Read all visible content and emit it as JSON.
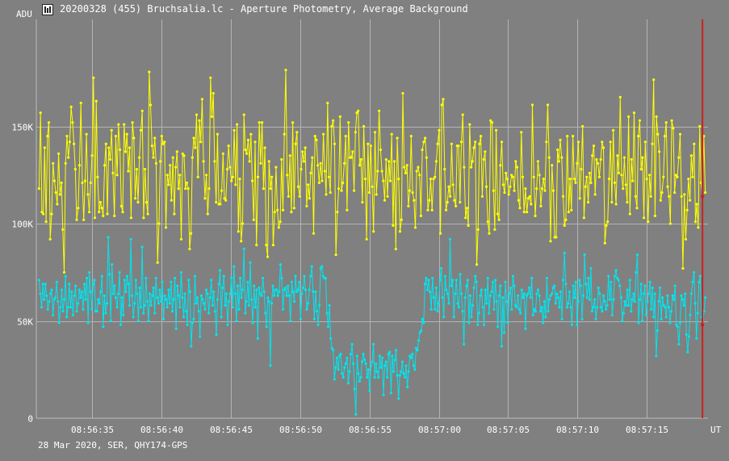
{
  "window": {
    "title": "20200328 (455) Bruchsalia.lc - Aperture Photometry, Average Background",
    "icon": "lightcurve-app-icon"
  },
  "footer": {
    "text": "28 Mar 2020, SER, QHY174-GPS"
  },
  "chart_data": {
    "type": "line",
    "title": "20200328 (455) Bruchsalia.lc - Aperture Photometry, Average Background",
    "ylabel": "ADU",
    "xlabel": "UT",
    "ylim": [
      0,
      205000
    ],
    "xlim": [
      "08:56:31.0",
      "08:57:19.4"
    ],
    "y_ticks": [
      0,
      50000,
      100000,
      150000
    ],
    "y_tick_labels": [
      "0",
      "50K",
      "100K",
      "150K"
    ],
    "x_ticks": [
      "08:56:35",
      "08:56:40",
      "08:56:45",
      "08:56:50",
      "08:56:55",
      "08:57:00",
      "08:57:05",
      "08:57:10",
      "08:57:15"
    ],
    "x_tick_labels": [
      "08:56:35",
      "08:56:40",
      "08:56:45",
      "08:56:50",
      "08:56:55",
      "08:57:00",
      "08:57:05",
      "08:57:10",
      "08:57:15"
    ],
    "grid": true,
    "cursor": {
      "x": "08:57:19.0",
      "color": "#cc2020"
    },
    "background": "#808080",
    "series": [
      {
        "color": "#ffff00",
        "x_start": "08:56:31.2",
        "x_end": "08:57:19.2",
        "values": [
          118000,
          157000,
          106000,
          105000,
          139000,
          101000,
          145000,
          152000,
          92000,
          105000,
          131000,
          122000,
          116000,
          110000,
          136000,
          115000,
          121000,
          97000,
          75000,
          131000,
          145000,
          134000,
          142000,
          160000,
          152000,
          141000,
          128000,
          102000,
          108000,
          130000,
          162000,
          121000,
          102000,
          122000,
          146000,
          115000,
          106000,
          121000,
          135000,
          175000,
          103000,
          163000,
          124000,
          106000,
          111000,
          108000,
          104000,
          130000,
          141000,
          105000,
          139000,
          133000,
          148000,
          126000,
          104000,
          145000,
          125000,
          151000,
          138000,
          109000,
          106000,
          151000,
          137000,
          146000,
          127000,
          139000,
          103000,
          152000,
          144000,
          113000,
          128000,
          111000,
          134000,
          148000,
          158000,
          103000,
          128000,
          111000,
          105000,
          178000,
          161000,
          140000,
          134000,
          144000,
          131000,
          80000,
          100000,
          132000,
          145000,
          141000,
          142000,
          98000,
          125000,
          120000,
          130000,
          112000,
          134000,
          105000,
          129000,
          137000,
          118000,
          125000,
          92000,
          136000,
          135000,
          118000,
          121000,
          118000,
          87000,
          95000,
          134000,
          144000,
          139000,
          156000,
          124000,
          153000,
          142000,
          164000,
          132000,
          113000,
          125000,
          105000,
          118000,
          175000,
          155000,
          167000,
          132000,
          111000,
          146000,
          110000,
          110000,
          117000,
          136000,
          113000,
          112000,
          128000,
          140000,
          129000,
          122000,
          124000,
          148000,
          120000,
          151000,
          96000,
          123000,
          91000,
          100000,
          156000,
          138000,
          136000,
          143000,
          132000,
          146000,
          122000,
          102000,
          142000,
          89000,
          124000,
          152000,
          131000,
          152000,
          118000,
          139000,
          89000,
          83000,
          132000,
          118000,
          124000,
          89000,
          106000,
          129000,
          107000,
          98000,
          101000,
          133000,
          107000,
          146000,
          179000,
          125000,
          114000,
          135000,
          106000,
          152000,
          108000,
          141000,
          147000,
          119000,
          114000,
          128000,
          137000,
          132000,
          139000,
          109000,
          120000,
          113000,
          126000,
          134000,
          95000,
          145000,
          143000,
          130000,
          121000,
          131000,
          122000,
          146000,
          127000,
          115000,
          162000,
          124000,
          116000,
          150000,
          153000,
          141000,
          84000,
          106000,
          118000,
          155000,
          117000,
          121000,
          131000,
          145000,
          107000,
          152000,
          134000,
          134000,
          137000,
          117000,
          147000,
          157000,
          158000,
          130000,
          133000,
          111000,
          150000,
          123000,
          92000,
          141000,
          116000,
          140000,
          119000,
          96000,
          147000,
          115000,
          127000,
          158000,
          138000,
          127000,
          122000,
          112000,
          133000,
          114000,
          132000,
          122000,
          146000,
          99000,
          132000,
          87000,
          144000,
          123000,
          96000,
          102000,
          167000,
          129000,
          126000,
          130000,
          109000,
          117000,
          145000,
          116000,
          112000,
          98000,
          127000,
          129000,
          125000,
          104000,
          138000,
          142000,
          144000,
          134000,
          107000,
          112000,
          123000,
          107000,
          123000,
          124000,
          132000,
          141000,
          148000,
          95000,
          161000,
          164000,
          128000,
          107000,
          111000,
          119000,
          114000,
          141000,
          120000,
          112000,
          109000,
          140000,
          140000,
          111000,
          142000,
          156000,
          129000,
          103000,
          108000,
          99000,
          151000,
          129000,
          132000,
          139000,
          142000,
          79000,
          97000,
          141000,
          145000,
          114000,
          133000,
          137000,
          119000,
          101000,
          95000,
          153000,
          152000,
          117000,
          97000,
          148000,
          105000,
          102000,
          130000,
          142000,
          120000,
          116000,
          126000,
          123000,
          115000,
          119000,
          125000,
          124000,
          117000,
          132000,
          129000,
          112000,
          108000,
          147000,
          124000,
          106000,
          118000,
          106000,
          113000,
          114000,
          110000,
          161000,
          124000,
          104000,
          118000,
          132000,
          125000,
          109000,
          118000,
          123000,
          117000,
          142000,
          161000,
          134000,
          91000,
          130000,
          117000,
          93000,
          93000,
          138000,
          132000,
          143000,
          134000,
          114000,
          99000,
          102000,
          145000,
          106000,
          123000,
          107000,
          145000,
          123000,
          121000,
          131000,
          142000,
          113000,
          128000,
          150000,
          103000,
          119000,
          124000,
          111000,
          126000,
          121000,
          135000,
          140000,
          115000,
          133000,
          131000,
          124000,
          133000,
          142000,
          139000,
          90000,
          99000,
          101000,
          123000,
          142000,
          111000,
          148000,
          121000,
          110000,
          135000,
          126000,
          165000,
          125000,
          118000,
          134000,
          120000,
          111000,
          155000,
          105000,
          133000,
          122000,
          157000,
          114000,
          108000,
          145000,
          153000,
          128000,
          134000,
          103000,
          142000,
          123000,
          101000,
          125000,
          114000,
          141000,
          174000,
          104000,
          155000,
          146000,
          137000,
          112000,
          116000,
          124000,
          145000,
          152000,
          119000,
          114000,
          100000,
          153000,
          149000,
          116000,
          125000,
          124000,
          134000,
          146000,
          114000,
          77000,
          115000,
          92000,
          107000,
          123000,
          112000,
          135000,
          124000,
          141000,
          101000,
          110000,
          98000,
          150000,
          121000,
          114000,
          145000,
          116000
        ]
      },
      {
        "color": "#00e5ee",
        "x_start": "08:56:31.2",
        "x_end": "08:57:19.2",
        "values": [
          71000,
          64000,
          57000,
          69000,
          61000,
          69000,
          63000,
          56000,
          60000,
          64000,
          66000,
          53000,
          61000,
          62000,
          70000,
          60000,
          49000,
          57000,
          66000,
          55000,
          61000,
          73000,
          52000,
          57000,
          69000,
          57000,
          65000,
          53000,
          63000,
          68000,
          55000,
          59000,
          66000,
          62000,
          65000,
          56000,
          69000,
          61000,
          72000,
          49000,
          75000,
          65000,
          56000,
          69000,
          71000,
          55000,
          55000,
          61000,
          59000,
          65000,
          73000,
          47000,
          63000,
          54000,
          59000,
          93000,
          74000,
          50000,
          79000,
          64000,
          68000,
          62000,
          57000,
          64000,
          75000,
          48000,
          62000,
          53000,
          71000,
          65000,
          73000,
          69000,
          58000,
          92000,
          63000,
          52000,
          59000,
          71000,
          64000,
          50000,
          67000,
          57000,
          88000,
          54000,
          58000,
          72000,
          60000,
          50000,
          64000,
          58000,
          63000,
          67000,
          54000,
          72000,
          62000,
          59000,
          66000,
          60000,
          70000,
          51000,
          63000,
          61000,
          57000,
          66000,
          59000,
          70000,
          55000,
          61000,
          72000,
          46000,
          68000,
          63000,
          57000,
          75000,
          62000,
          52000,
          64000,
          55000,
          48000,
          71000,
          65000,
          37000,
          49000,
          51000,
          73000,
          59000,
          62000,
          55000,
          42000,
          63000,
          61000,
          59000,
          56000,
          66000,
          64000,
          54000,
          62000,
          71000,
          58000,
          65000,
          55000,
          43000,
          61000,
          69000,
          76000,
          52000,
          67000,
          73000,
          58000,
          64000,
          48000,
          60000,
          64000,
          72000,
          57000,
          78000,
          64000,
          50000,
          68000,
          56000,
          72000,
          62000,
          66000,
          87000,
          54000,
          60000,
          70000,
          58000,
          80000,
          61000,
          49000,
          68000,
          57000,
          66000,
          41000,
          67000,
          64000,
          63000,
          72000,
          65000,
          54000,
          47000,
          62000,
          60000,
          27000,
          59000,
          68000,
          63000,
          66000,
          66000,
          63000,
          65000,
          79000,
          72000,
          56000,
          66000,
          67000,
          63000,
          68000,
          63000,
          50000,
          70000,
          65000,
          60000,
          73000,
          65000,
          66000,
          70000,
          51000,
          64000,
          67000,
          73000,
          66000,
          56000,
          59000,
          66000,
          73000,
          78000,
          65000,
          51000,
          65000,
          55000,
          48000,
          58000,
          77000,
          78000,
          73000,
          72000,
          72000,
          54000,
          47000,
          58000,
          41000,
          36000,
          35000,
          20000,
          26000,
          31000,
          25000,
          32000,
          33000,
          23000,
          21000,
          26000,
          28000,
          31000,
          18000,
          24000,
          33000,
          38000,
          28000,
          15000,
          2000,
          32000,
          23000,
          19000,
          21000,
          29000,
          33000,
          30000,
          28000,
          21000,
          25000,
          14000,
          27000,
          29000,
          38000,
          21000,
          28000,
          24000,
          21000,
          32000,
          26000,
          31000,
          12000,
          27000,
          29000,
          21000,
          33000,
          34000,
          13000,
          32000,
          24000,
          30000,
          35000,
          22000,
          10000,
          22000,
          24000,
          29000,
          23000,
          21000,
          27000,
          16000,
          24000,
          32000,
          31000,
          33000,
          27000,
          25000,
          36000,
          35000,
          40000,
          44000,
          45000,
          51000,
          49000,
          69000,
          72000,
          66000,
          71000,
          65000,
          56000,
          72000,
          62000,
          56000,
          67000,
          55000,
          59000,
          71000,
          77000,
          62000,
          52000,
          73000,
          66000,
          64000,
          59000,
          92000,
          68000,
          71000,
          52000,
          64000,
          71000,
          59000,
          57000,
          74000,
          64000,
          55000,
          38000,
          62000,
          68000,
          71000,
          49000,
          63000,
          52000,
          58000,
          67000,
          73000,
          70000,
          48000,
          54000,
          63000,
          66000,
          57000,
          48000,
          66000,
          59000,
          72000,
          54000,
          63000,
          65000,
          70000,
          56000,
          71000,
          60000,
          47000,
          63000,
          68000,
          37000,
          62000,
          44000,
          70000,
          60000,
          49000,
          64000,
          67000,
          56000,
          73000,
          68000,
          58000,
          57000,
          63000,
          56000,
          54000,
          66000,
          62000,
          64000,
          46000,
          63000,
          64000,
          67000,
          62000,
          72000,
          53000,
          56000,
          55000,
          64000,
          66000,
          63000,
          55000,
          57000,
          49000,
          60000,
          52000,
          72000,
          55000,
          61000,
          63000,
          64000,
          67000,
          68000,
          59000,
          64000,
          62000,
          57000,
          65000,
          51000,
          71000,
          85000,
          69000,
          57000,
          59000,
          65000,
          57000,
          48000,
          68000,
          62000,
          70000,
          48000,
          60000,
          71000,
          68000,
          51000,
          63000,
          84000,
          69000,
          62000,
          72000,
          61000,
          77000,
          55000,
          57000,
          61000,
          51000,
          57000,
          67000,
          64000,
          57000,
          55000,
          63000,
          60000,
          56000,
          58000,
          73000,
          61000,
          70000,
          53000,
          61000,
          73000,
          76000,
          72000,
          71000,
          68000,
          62000,
          50000,
          54000,
          60000,
          58000,
          66000,
          58000,
          71000,
          55000,
          61000,
          64000,
          60000,
          75000,
          84000,
          49000,
          61000,
          69000,
          50000,
          64000,
          68000,
          53000,
          60000,
          64000,
          70000,
          56000,
          67000,
          52000,
          64000,
          32000,
          45000,
          60000,
          67000,
          51000,
          62000,
          58000,
          57000,
          52000,
          63000,
          57000,
          49000,
          55000,
          63000,
          61000,
          68000,
          48000,
          47000,
          38000,
          49000,
          63000,
          61000,
          58000,
          64000,
          43000,
          34000,
          42000,
          53000,
          64000,
          70000,
          75000,
          59000,
          41000,
          54000,
          70000,
          73000,
          52000,
          48000,
          55000,
          62000
        ]
      }
    ]
  }
}
